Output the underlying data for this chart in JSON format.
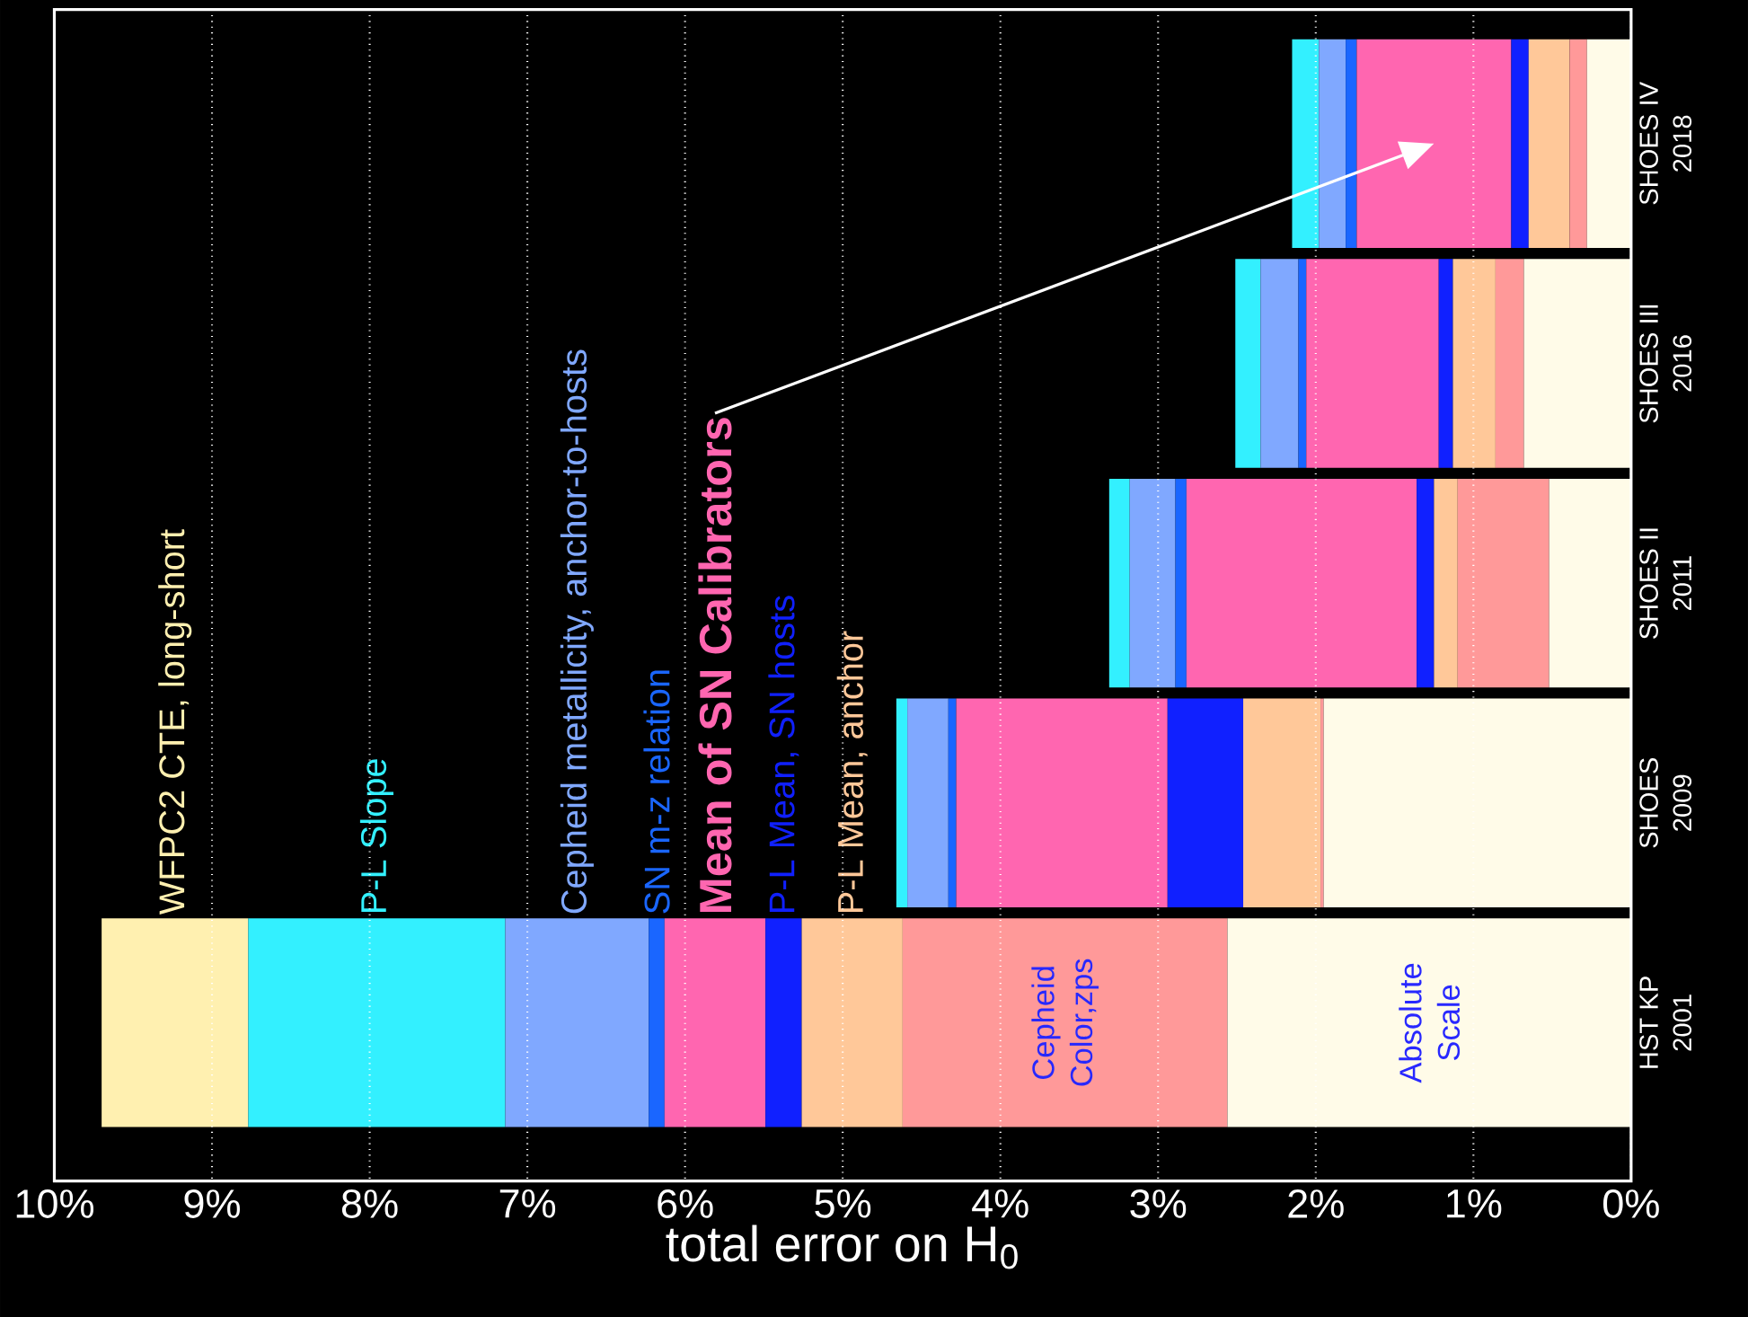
{
  "chart_data": {
    "type": "bar",
    "orientation": "horizontal",
    "stacked": true,
    "xlabel": "total error on H$_{0}$",
    "categories": [
      "SHOES IV 2018",
      "SHOES III 2016",
      "SHOES II 2011",
      "SHOES 2009",
      "HST KP 2001"
    ],
    "xlim": [
      10,
      0
    ],
    "xticks": [
      {
        "value": 10,
        "label": "10%"
      },
      {
        "value": 9,
        "label": "9%"
      },
      {
        "value": 8,
        "label": "8%"
      },
      {
        "value": 7,
        "label": "7%"
      },
      {
        "value": 6,
        "label": "6%"
      },
      {
        "value": 5,
        "label": "5%"
      },
      {
        "value": 4,
        "label": "4%"
      },
      {
        "value": 3,
        "label": "3%"
      },
      {
        "value": 2,
        "label": "2%"
      },
      {
        "value": 1,
        "label": "1%"
      },
      {
        "value": 0,
        "label": "0%"
      }
    ],
    "grid": "x",
    "series": [
      {
        "name": "Absolute Scale",
        "color": "#fffbe8",
        "values": [
          0.28,
          0.68,
          0.52,
          1.95,
          2.56
        ]
      },
      {
        "name": "Cepheid Color,zps",
        "color": "#ff9999",
        "values": [
          0.11,
          0.18,
          0.58,
          0.02,
          2.06
        ]
      },
      {
        "name": "P-L Mean, anchor",
        "color": "#ffc899",
        "values": [
          0.26,
          0.27,
          0.15,
          0.49,
          0.64
        ]
      },
      {
        "name": "P-L Mean, SN hosts",
        "color": "#1020ff",
        "values": [
          0.11,
          0.09,
          0.11,
          0.48,
          0.23
        ]
      },
      {
        "name": "Mean of SN Calibrators",
        "color": "#ff66b0",
        "values": [
          0.98,
          0.84,
          1.46,
          1.34,
          0.64
        ]
      },
      {
        "name": "SN m-z relation",
        "color": "#1a66ff",
        "values": [
          0.07,
          0.05,
          0.07,
          0.05,
          0.1
        ]
      },
      {
        "name": "Cepheid metallicity, anchor-to-hosts",
        "color": "#80a8ff",
        "values": [
          0.17,
          0.24,
          0.29,
          0.26,
          0.91
        ]
      },
      {
        "name": "P-L Slope",
        "color": "#33f0ff",
        "values": [
          0.17,
          0.16,
          0.13,
          0.07,
          1.63
        ]
      },
      {
        "name": "WFPC2 CTE, long-short",
        "color": "#fff0b0",
        "values": [
          0,
          0,
          0,
          0,
          0.93
        ]
      }
    ]
  }
}
